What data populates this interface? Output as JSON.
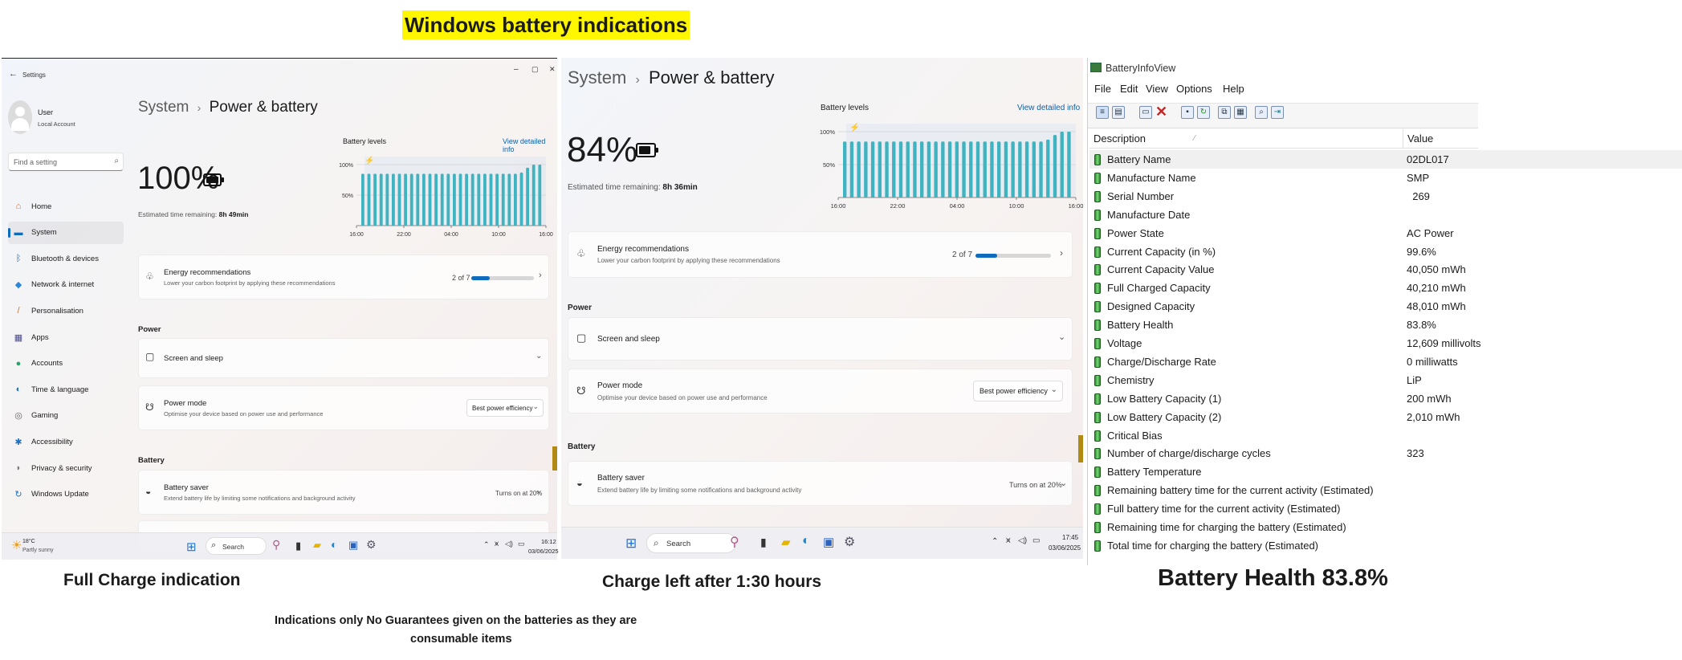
{
  "page_title": "Windows battery indications",
  "captions": {
    "left": "Full Charge indication",
    "middle": "Charge left after 1:30 hours",
    "right": "Battery Health 83.8%",
    "disclaimer_1": "Indications only No Guarantees given on the batteries as they are",
    "disclaimer_2": "consumable items"
  },
  "colors": {
    "accent": "#0f6cbd",
    "bar": "#3fb3bf",
    "highlight": "#fff700"
  },
  "left_window": {
    "app_title": "Settings",
    "window_controls": [
      "–",
      "▢",
      "✕"
    ],
    "user": {
      "name": "User",
      "account": "Local Account"
    },
    "search_placeholder": "Find a setting",
    "nav": [
      {
        "label": "Home",
        "icon": "home-icon",
        "glyph": "⌂",
        "color": "#d86b28"
      },
      {
        "label": "System",
        "icon": "monitor-icon",
        "glyph": "▬",
        "color": "#0f6cbd",
        "selected": true
      },
      {
        "label": "Bluetooth & devices",
        "icon": "bluetooth-icon",
        "glyph": "ᛒ",
        "color": "#0f6cbd"
      },
      {
        "label": "Network & internet",
        "icon": "wifi-icon",
        "glyph": "◆",
        "color": "#2b88d8"
      },
      {
        "label": "Personalisation",
        "icon": "brush-icon",
        "glyph": "/",
        "color": "#c0752b"
      },
      {
        "label": "Apps",
        "icon": "apps-icon",
        "glyph": "▦",
        "color": "#4a4a8a"
      },
      {
        "label": "Accounts",
        "icon": "person-icon",
        "glyph": "●",
        "color": "#2aa36b"
      },
      {
        "label": "Time & language",
        "icon": "globe-icon",
        "glyph": "◐",
        "color": "#1f6fbf"
      },
      {
        "label": "Gaming",
        "icon": "gamepad-icon",
        "glyph": "◎",
        "color": "#666"
      },
      {
        "label": "Accessibility",
        "icon": "accessibility-icon",
        "glyph": "✱",
        "color": "#1f6fbf"
      },
      {
        "label": "Privacy & security",
        "icon": "shield-icon",
        "glyph": "◗",
        "color": "#777"
      },
      {
        "label": "Windows Update",
        "icon": "update-icon",
        "glyph": "↻",
        "color": "#1f6fbf"
      }
    ],
    "breadcrumb": {
      "parent": "System",
      "sep": "›",
      "current": "Power & battery"
    },
    "percent": "100%",
    "estimated_label": "Estimated time remaining:",
    "estimated_value": "8h 49min",
    "battery_levels_label": "Battery levels",
    "view_detailed": "View detailed info",
    "chart_y_labels": [
      "100%",
      "50%"
    ],
    "chart_x_labels": [
      "16:00",
      "22:00",
      "04:00",
      "10:00",
      "16:00"
    ],
    "levels": [
      0.85,
      0.85,
      0.85,
      0.85,
      0.85,
      0.85,
      0.85,
      0.85,
      0.85,
      0.85,
      0.85,
      0.85,
      0.85,
      0.85,
      0.85,
      0.85,
      0.85,
      0.85,
      0.85,
      0.85,
      0.85,
      0.85,
      0.85,
      0.85,
      0.85,
      0.85,
      0.87,
      0.95,
      1.0,
      1.0
    ],
    "energy_title": "Energy recommendations",
    "energy_sub": "Lower your carbon footprint by applying these recommendations",
    "energy_count": "2 of 7",
    "energy_progress": 0.29,
    "power_heading": "Power",
    "screen_sleep": "Screen and sleep",
    "power_mode_title": "Power mode",
    "power_mode_sub": "Optimise your device based on power use and performance",
    "power_mode_value": "Best power efficiency",
    "battery_heading": "Battery",
    "saver_title": "Battery saver",
    "saver_sub": "Extend battery life by limiting some notifications and background activity",
    "saver_value": "Turns on at 20%",
    "weather_temp": "18°C",
    "weather_desc": "Partly sunny",
    "taskbar_search": "Search",
    "time": "16:12",
    "date": "03/06/2025"
  },
  "middle_window": {
    "breadcrumb": {
      "parent": "System",
      "sep": "›",
      "current": "Power & battery"
    },
    "percent": "84%",
    "estimated_label": "Estimated time remaining:",
    "estimated_value": "8h 36min",
    "battery_levels_label": "Battery levels",
    "view_detailed": "View detailed info",
    "chart_y_labels": [
      "100%",
      "50%"
    ],
    "chart_x_labels": [
      "16:00",
      "22:00",
      "04:00",
      "10:00",
      "16:00"
    ],
    "levels": [
      0.85,
      0.85,
      0.85,
      0.85,
      0.85,
      0.85,
      0.85,
      0.85,
      0.85,
      0.85,
      0.85,
      0.85,
      0.85,
      0.85,
      0.85,
      0.85,
      0.85,
      0.85,
      0.85,
      0.85,
      0.85,
      0.85,
      0.85,
      0.85,
      0.85,
      0.85,
      0.85,
      0.85,
      0.85,
      0.88,
      0.95,
      1.0,
      1.0
    ],
    "energy_title": "Energy recommendations",
    "energy_sub": "Lower your carbon footprint by applying these recommendations",
    "energy_count": "2 of 7",
    "energy_progress": 0.29,
    "power_heading": "Power",
    "screen_sleep": "Screen and sleep",
    "power_mode_title": "Power mode",
    "power_mode_sub": "Optimise your device based on power use and performance",
    "power_mode_value": "Best power efficiency",
    "battery_heading": "Battery",
    "saver_title": "Battery saver",
    "saver_sub": "Extend battery life by limiting some notifications and background activity",
    "saver_value": "Turns on at 20%",
    "taskbar_search": "Search",
    "time": "17:45",
    "date": "03/06/2025"
  },
  "biv": {
    "title": "BatteryInfoView",
    "menu": [
      "File",
      "Edit",
      "View",
      "Options",
      "Help"
    ],
    "col_description": "Description",
    "col_value": "Value",
    "rows": [
      {
        "d": "Battery Name",
        "v": "02DL017"
      },
      {
        "d": "Manufacture Name",
        "v": "SMP"
      },
      {
        "d": "Serial Number",
        "v": "  269"
      },
      {
        "d": "Manufacture Date",
        "v": ""
      },
      {
        "d": "Power State",
        "v": "AC Power"
      },
      {
        "d": "Current Capacity (in %)",
        "v": "99.6%"
      },
      {
        "d": "Current Capacity Value",
        "v": "40,050 mWh"
      },
      {
        "d": "Full Charged Capacity",
        "v": "40,210 mWh"
      },
      {
        "d": "Designed Capacity",
        "v": "48,010 mWh"
      },
      {
        "d": "Battery Health",
        "v": "83.8%"
      },
      {
        "d": "Voltage",
        "v": "12,609 millivolts"
      },
      {
        "d": "Charge/Discharge Rate",
        "v": "0 milliwatts"
      },
      {
        "d": "Chemistry",
        "v": "LiP"
      },
      {
        "d": "Low Battery Capacity (1)",
        "v": "200 mWh"
      },
      {
        "d": "Low Battery Capacity (2)",
        "v": "2,010 mWh"
      },
      {
        "d": "Critical Bias",
        "v": ""
      },
      {
        "d": "Number of charge/discharge cycles",
        "v": "323"
      },
      {
        "d": "Battery Temperature",
        "v": ""
      },
      {
        "d": "Remaining battery time for the current activity (Estimated)",
        "v": ""
      },
      {
        "d": "Full battery time for the current activity (Estimated)",
        "v": ""
      },
      {
        "d": "Remaining time for charging the battery (Estimated)",
        "v": ""
      },
      {
        "d": "Total  time for charging the battery (Estimated)",
        "v": ""
      }
    ]
  }
}
